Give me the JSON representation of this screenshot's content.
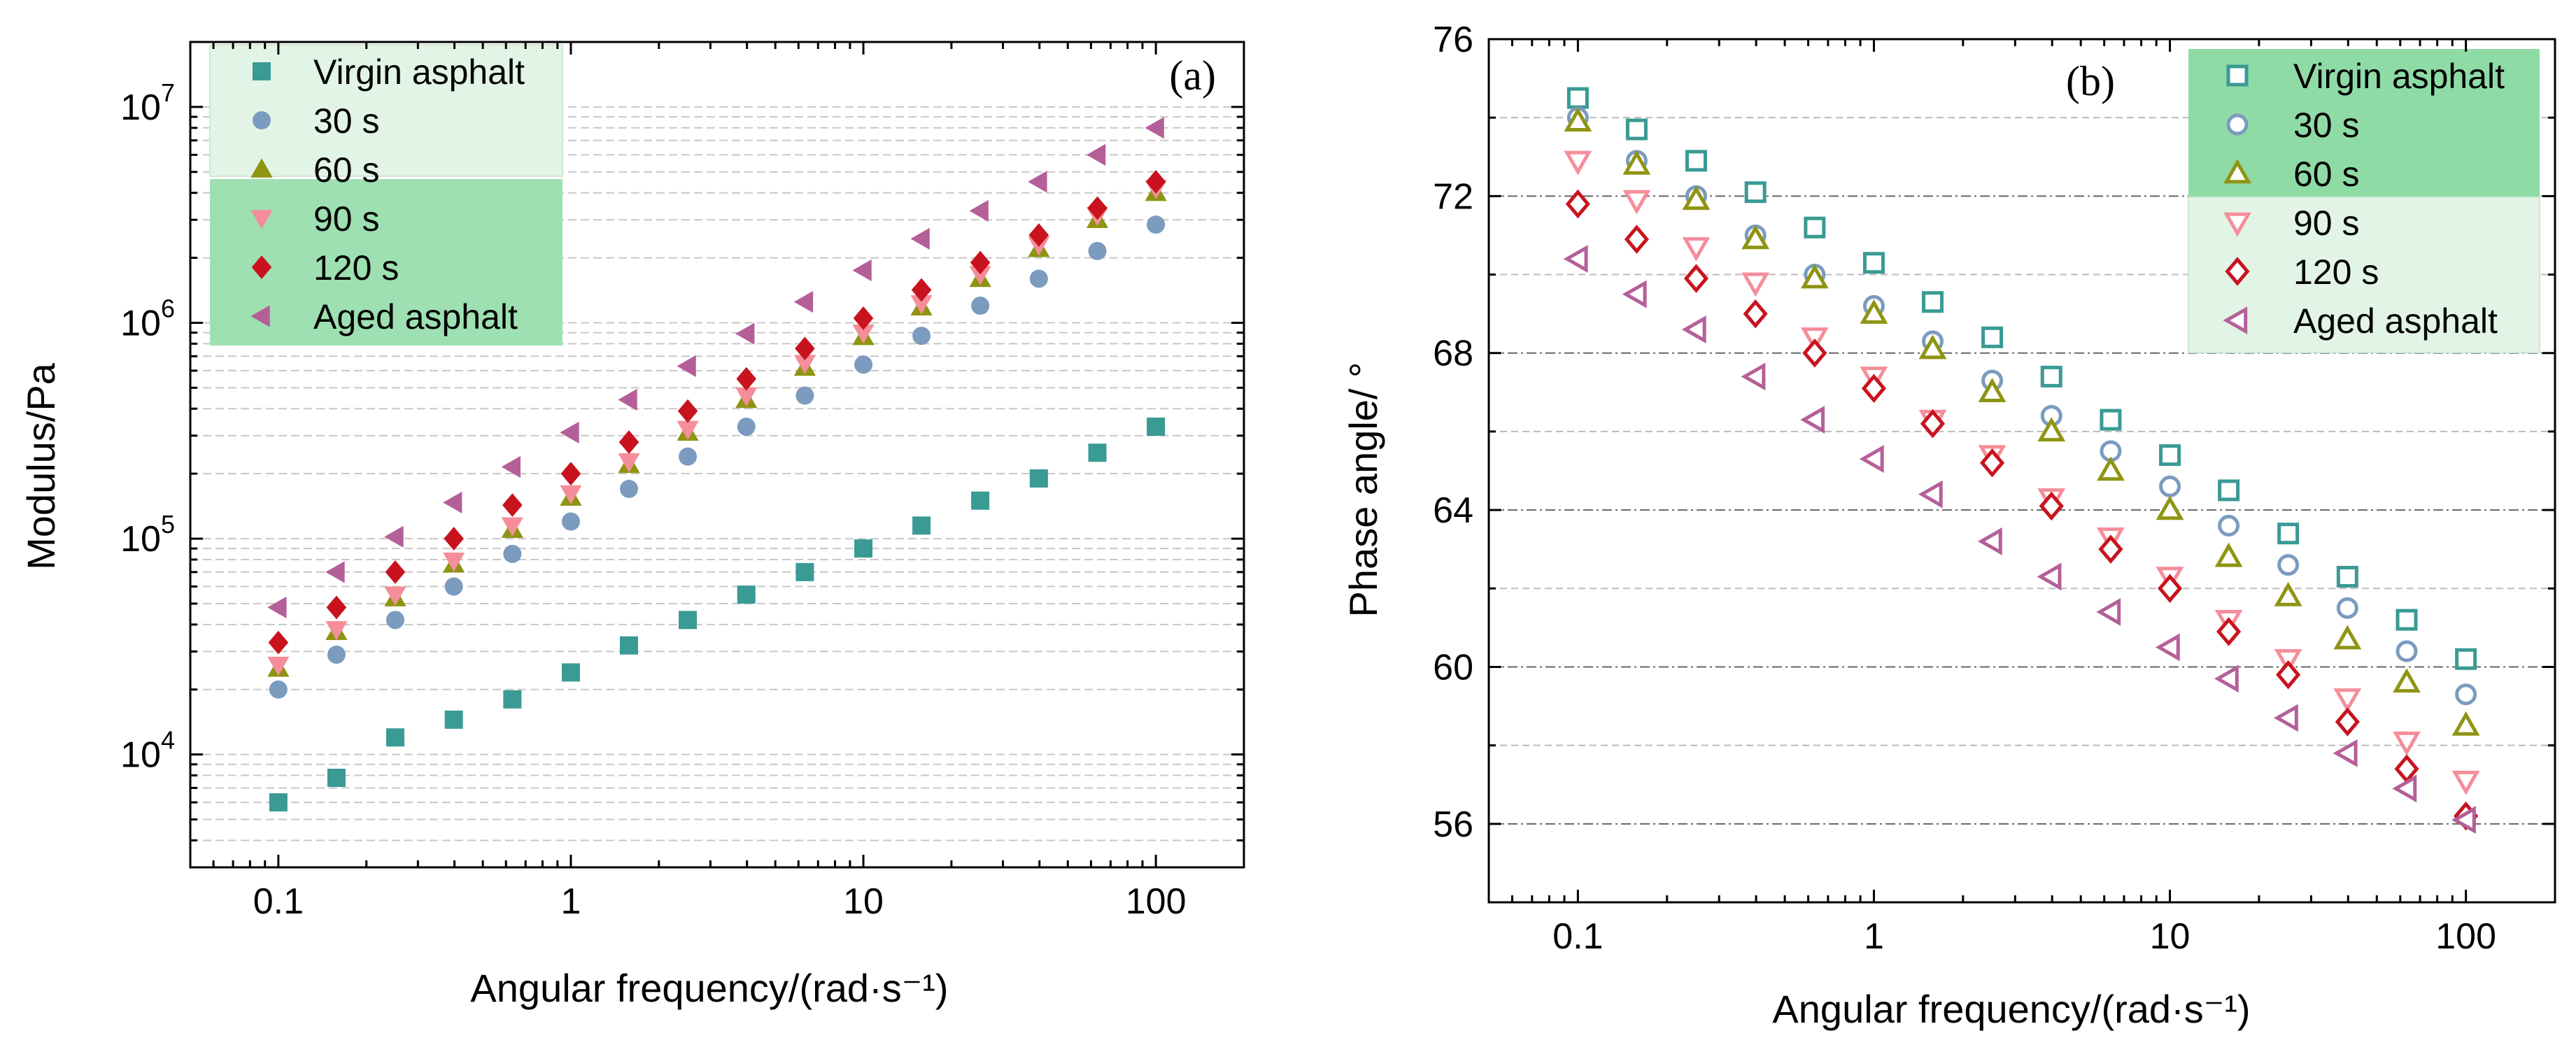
{
  "chart_data": [
    {
      "type": "scatter",
      "panel_label": "(a)",
      "xlabel": "Angular frequency/(rad·s⁻¹)",
      "ylabel": "Modulus/Pa",
      "x_scale": "log",
      "y_scale": "log",
      "xlim": [
        0.05,
        200
      ],
      "ylim": [
        3000,
        20000000
      ],
      "x_ticks": [
        {
          "value": 0.1,
          "label": "0.1"
        },
        {
          "value": 1,
          "label": "1"
        },
        {
          "value": 10,
          "label": "10"
        },
        {
          "value": 100,
          "label": "100"
        }
      ],
      "y_ticks": [
        {
          "value": 10000,
          "base": "10",
          "exp": "4"
        },
        {
          "value": 100000,
          "base": "10",
          "exp": "5"
        },
        {
          "value": 1000000,
          "base": "10",
          "exp": "6"
        },
        {
          "value": 10000000,
          "base": "10",
          "exp": "7"
        }
      ],
      "grid": "horizontal-dashed",
      "legend_position": "top-left",
      "x": [
        0.1,
        0.158,
        0.251,
        0.398,
        0.631,
        1.0,
        1.58,
        2.51,
        3.98,
        6.31,
        10.0,
        15.8,
        25.1,
        39.8,
        63.1,
        100.0
      ],
      "series": [
        {
          "name": "Virgin asphalt",
          "marker": "square",
          "color": "#3a9a94",
          "values": [
            6000,
            7800,
            12000,
            14500,
            18000,
            24000,
            32000,
            42000,
            55000,
            70000,
            90000,
            115000,
            150000,
            190000,
            250000,
            330000
          ]
        },
        {
          "name": "30 s",
          "marker": "circle",
          "color": "#7b9bbf",
          "values": [
            20000,
            29000,
            42000,
            60000,
            85000,
            120000,
            170000,
            240000,
            330000,
            460000,
            640000,
            870000,
            1200000,
            1600000,
            2150000,
            2850000
          ]
        },
        {
          "name": "60 s",
          "marker": "triangle-up",
          "color": "#8f9412",
          "values": [
            25000,
            37000,
            53000,
            76000,
            110000,
            155000,
            220000,
            310000,
            440000,
            620000,
            860000,
            1180000,
            1600000,
            2200000,
            3000000,
            4000000
          ]
        },
        {
          "name": "90 s",
          "marker": "triangle-down",
          "color": "#f58e9a",
          "values": [
            26000,
            38000,
            55000,
            79000,
            115000,
            162000,
            228000,
            322000,
            460000,
            650000,
            900000,
            1230000,
            1680000,
            2300000,
            3150000,
            4200000
          ]
        },
        {
          "name": "120 s",
          "marker": "diamond",
          "color": "#c8131f",
          "values": [
            33000,
            48000,
            70000,
            100000,
            143000,
            200000,
            280000,
            390000,
            550000,
            760000,
            1050000,
            1420000,
            1900000,
            2550000,
            3400000,
            4500000
          ]
        },
        {
          "name": "Aged asphalt",
          "marker": "triangle-left",
          "color": "#b55f99",
          "values": [
            48000,
            70000,
            102000,
            147000,
            215000,
            310000,
            440000,
            630000,
            890000,
            1250000,
            1750000,
            2450000,
            3300000,
            4500000,
            6000000,
            8000000
          ]
        }
      ]
    },
    {
      "type": "scatter",
      "panel_label": "(b)",
      "xlabel": "Angular frequency/(rad·s⁻¹)",
      "ylabel": "Phase angle/ °",
      "x_scale": "log",
      "y_scale": "linear",
      "xlim": [
        0.05,
        200
      ],
      "ylim": [
        54,
        76
      ],
      "x_ticks": [
        {
          "value": 0.1,
          "label": "0.1"
        },
        {
          "value": 1,
          "label": "1"
        },
        {
          "value": 10,
          "label": "10"
        },
        {
          "value": 100,
          "label": "100"
        }
      ],
      "y_ticks": [
        {
          "value": 56,
          "label": "56"
        },
        {
          "value": 60,
          "label": "60"
        },
        {
          "value": 64,
          "label": "64"
        },
        {
          "value": 68,
          "label": "68"
        },
        {
          "value": 72,
          "label": "72"
        },
        {
          "value": 76,
          "label": "76"
        }
      ],
      "grid": "horizontal-dashdot",
      "legend_position": "top-right",
      "x": [
        0.1,
        0.158,
        0.251,
        0.398,
        0.631,
        1.0,
        1.58,
        2.51,
        3.98,
        6.31,
        10.0,
        15.8,
        25.1,
        39.8,
        63.1,
        100.0
      ],
      "series": [
        {
          "name": "Virgin asphalt",
          "marker": "square-open",
          "color": "#3a9a94",
          "values": [
            74.5,
            73.7,
            72.9,
            72.1,
            71.2,
            70.3,
            69.3,
            68.4,
            67.4,
            66.3,
            65.4,
            64.5,
            63.4,
            62.3,
            61.2,
            60.2
          ]
        },
        {
          "name": "30 s",
          "marker": "circle-open",
          "color": "#7b9bbf",
          "values": [
            74.0,
            72.9,
            72.0,
            71.0,
            70.0,
            69.2,
            68.3,
            67.3,
            66.4,
            65.5,
            64.6,
            63.6,
            62.6,
            61.5,
            60.4,
            59.3
          ]
        },
        {
          "name": "60 s",
          "marker": "triangle-up-open",
          "color": "#8f9412",
          "values": [
            73.9,
            72.8,
            71.9,
            70.9,
            69.9,
            69.0,
            68.1,
            67.0,
            66.0,
            65.0,
            64.0,
            62.8,
            61.8,
            60.7,
            59.6,
            58.5
          ]
        },
        {
          "name": "90 s",
          "marker": "triangle-down-open",
          "color": "#f58e9a",
          "values": [
            72.9,
            71.9,
            70.7,
            69.8,
            68.4,
            67.4,
            66.3,
            65.4,
            64.3,
            63.3,
            62.3,
            61.2,
            60.2,
            59.2,
            58.1,
            57.1
          ]
        },
        {
          "name": "120 s",
          "marker": "diamond-open",
          "color": "#c8131f",
          "values": [
            71.8,
            70.9,
            69.9,
            69.0,
            68.0,
            67.1,
            66.2,
            65.2,
            64.1,
            63.0,
            62.0,
            60.9,
            59.8,
            58.6,
            57.4,
            56.2
          ]
        },
        {
          "name": "Aged asphalt",
          "marker": "triangle-left-open",
          "color": "#b55f99",
          "values": [
            70.4,
            69.5,
            68.6,
            67.4,
            66.3,
            65.3,
            64.4,
            63.2,
            62.3,
            61.4,
            60.5,
            59.7,
            58.7,
            57.8,
            56.9,
            56.1
          ]
        }
      ]
    }
  ]
}
